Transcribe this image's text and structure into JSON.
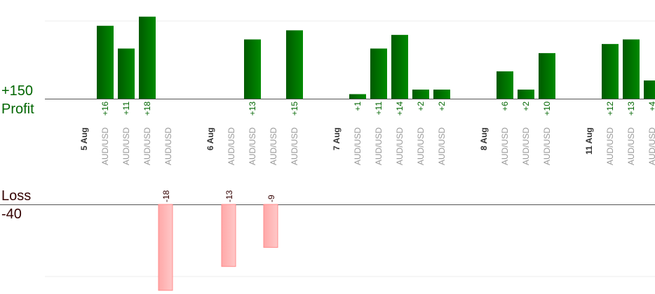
{
  "labels": {
    "profit_max": "+150",
    "profit_title": "Profit",
    "loss_title": "Loss",
    "loss_max": "-40"
  },
  "colors": {
    "profit_bar_dark": "#004d00",
    "profit_bar_light": "#008800",
    "loss_bar": "#ffb3b3",
    "profit_text": "#006600",
    "loss_text": "#330000",
    "pair_text": "#999999",
    "date_text": "#333333"
  },
  "chart_data": {
    "type": "bar",
    "profit_axis_max": 150,
    "loss_axis_max": 40,
    "slots": [
      {
        "kind": "date",
        "label": "5 Aug"
      },
      {
        "kind": "trade",
        "pair": "AUD/USD",
        "value": 16,
        "label": "+16"
      },
      {
        "kind": "trade",
        "pair": "AUD/USD",
        "value": 11,
        "label": "+11"
      },
      {
        "kind": "trade",
        "pair": "AUD/USD",
        "value": 18,
        "label": "+18"
      },
      {
        "kind": "trade",
        "pair": "AUD/USD",
        "value": -18,
        "label": "-18"
      },
      {
        "kind": "spacer"
      },
      {
        "kind": "date",
        "label": "6 Aug"
      },
      {
        "kind": "trade",
        "pair": "AUD/USD",
        "value": -13,
        "label": "-13"
      },
      {
        "kind": "trade",
        "pair": "AUD/USD",
        "value": 13,
        "label": "+13"
      },
      {
        "kind": "trade",
        "pair": "AUD/USD",
        "value": -9,
        "label": "-9"
      },
      {
        "kind": "trade",
        "pair": "AUD/USD",
        "value": 15,
        "label": "+15"
      },
      {
        "kind": "spacer"
      },
      {
        "kind": "date",
        "label": "7 Aug"
      },
      {
        "kind": "trade",
        "pair": "AUD/USD",
        "value": 1,
        "label": "+1"
      },
      {
        "kind": "trade",
        "pair": "AUD/USD",
        "value": 11,
        "label": "+11"
      },
      {
        "kind": "trade",
        "pair": "AUD/USD",
        "value": 14,
        "label": "+14"
      },
      {
        "kind": "trade",
        "pair": "AUD/USD",
        "value": 2,
        "label": "+2"
      },
      {
        "kind": "trade",
        "pair": "AUD/USD",
        "value": 2,
        "label": "+2"
      },
      {
        "kind": "spacer"
      },
      {
        "kind": "date",
        "label": "8 Aug"
      },
      {
        "kind": "trade",
        "pair": "AUD/USD",
        "value": 6,
        "label": "+6"
      },
      {
        "kind": "trade",
        "pair": "AUD/USD",
        "value": 2,
        "label": "+2"
      },
      {
        "kind": "trade",
        "pair": "AUD/USD",
        "value": 10,
        "label": "+10"
      },
      {
        "kind": "spacer"
      },
      {
        "kind": "date",
        "label": "11 Aug"
      },
      {
        "kind": "trade",
        "pair": "AUD/USD",
        "value": 12,
        "label": "+12"
      },
      {
        "kind": "trade",
        "pair": "AUD/USD",
        "value": 13,
        "label": "+13"
      },
      {
        "kind": "trade",
        "pair": "AUD/USD",
        "value": 4,
        "label": "+4"
      }
    ]
  }
}
